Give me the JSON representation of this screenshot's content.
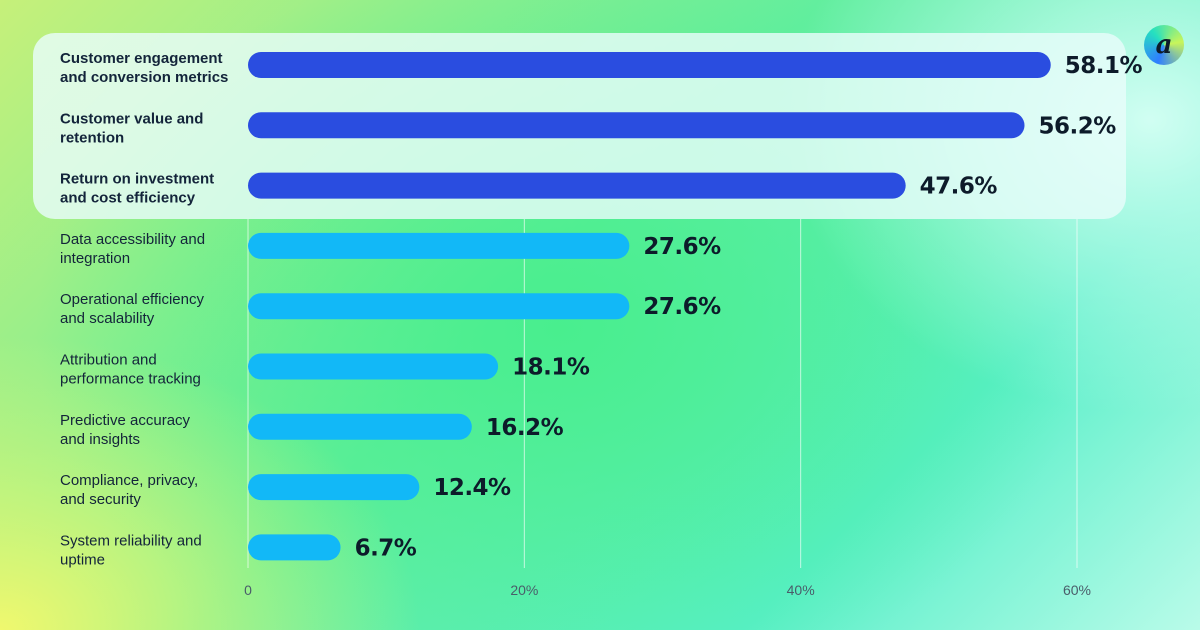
{
  "brand": {
    "logo_letter": "a"
  },
  "colors": {
    "highlight_bar": "#2a4de0",
    "bar": "#12b8f7",
    "text": "#13243a"
  },
  "chart_data": {
    "type": "bar",
    "orientation": "horizontal",
    "title": "",
    "xlabel": "",
    "ylabel": "",
    "xlim": [
      0,
      60
    ],
    "xticks": [
      "0",
      "20%",
      "40%",
      "60%"
    ],
    "grid": true,
    "categories": [
      [
        "Customer engagement",
        "and conversion metrics"
      ],
      [
        "Customer value and",
        "retention"
      ],
      [
        "Return on investment",
        "and cost efficiency"
      ],
      [
        "Data accessibility and",
        "integration"
      ],
      [
        "Operational efficiency",
        "and scalability"
      ],
      [
        "Attribution and",
        "performance tracking"
      ],
      [
        "Predictive accuracy",
        "and insights"
      ],
      [
        "Compliance, privacy,",
        "and security"
      ],
      [
        "System reliability and",
        "uptime"
      ]
    ],
    "values": [
      58.1,
      56.2,
      47.6,
      27.6,
      27.6,
      18.1,
      16.2,
      12.4,
      6.7
    ],
    "value_labels": [
      "58.1%",
      "56.2%",
      "47.6%",
      "27.6%",
      "27.6%",
      "18.1%",
      "16.2%",
      "12.4%",
      "6.7%"
    ],
    "highlighted_count": 3
  }
}
